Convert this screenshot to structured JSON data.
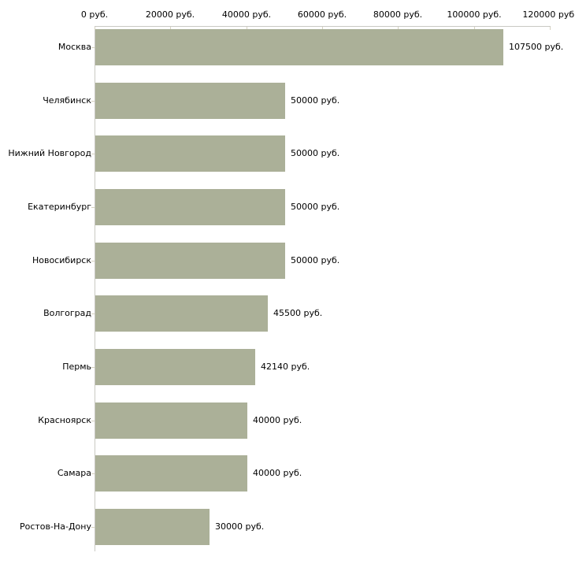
{
  "chart_data": {
    "type": "bar",
    "orientation": "horizontal",
    "unit": "руб.",
    "categories": [
      "Москва",
      "Челябинск",
      "Нижний Новгород",
      "Екатеринбург",
      "Новосибирск",
      "Волгоград",
      "Пермь",
      "Красноярск",
      "Самара",
      "Ростов-На-Дону"
    ],
    "values": [
      107500,
      50000,
      50000,
      50000,
      50000,
      45500,
      42140,
      40000,
      40000,
      30000
    ],
    "value_labels": [
      "107500 руб.",
      "50000 руб.",
      "50000 руб.",
      "50000 руб.",
      "50000 руб.",
      "45500 руб.",
      "42140 руб.",
      "40000 руб.",
      "40000 руб.",
      "30000 руб."
    ],
    "x_ticks": [
      {
        "value": 0,
        "label": "0 руб."
      },
      {
        "value": 20000,
        "label": "20000 руб."
      },
      {
        "value": 40000,
        "label": "40000 руб."
      },
      {
        "value": 60000,
        "label": "60000 руб."
      },
      {
        "value": 80000,
        "label": "80000 руб."
      },
      {
        "value": 100000,
        "label": "100000 руб."
      },
      {
        "value": 120000,
        "label": "120000 руб."
      }
    ],
    "xlim": [
      0,
      120000
    ],
    "grid": false,
    "legend": false,
    "axis_position": "top",
    "bar_color": "#abb098",
    "axis_color": "#c9c9c3",
    "tick_color": "#d5d1c0",
    "background": "#ffffff",
    "text_color": "#000000"
  }
}
